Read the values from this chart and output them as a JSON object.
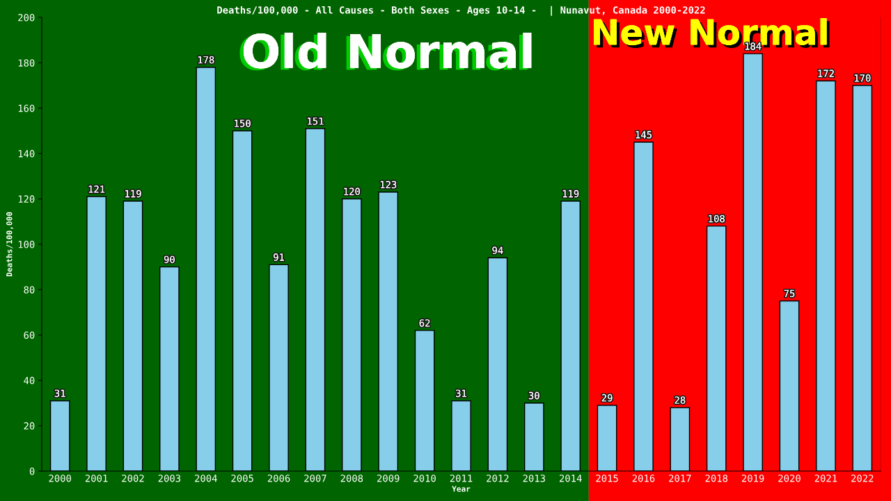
{
  "chart_data": {
    "type": "bar",
    "title": "Deaths/100,000 - All Causes - Both Sexes - Ages 10-14 -  | Nunavut, Canada 2000-2022",
    "xlabel": "Year",
    "ylabel": "Deaths/100,000",
    "categories": [
      "2000",
      "2001",
      "2002",
      "2003",
      "2004",
      "2005",
      "2006",
      "2007",
      "2008",
      "2009",
      "2010",
      "2011",
      "2012",
      "2013",
      "2014",
      "2015",
      "2016",
      "2017",
      "2018",
      "2019",
      "2020",
      "2021",
      "2022"
    ],
    "values": [
      31,
      121,
      119,
      90,
      178,
      150,
      91,
      151,
      120,
      123,
      62,
      31,
      94,
      30,
      119,
      29,
      145,
      28,
      108,
      184,
      75,
      172,
      170
    ],
    "color": "#87ceeb",
    "ylim": [
      0,
      200
    ],
    "yticks": [
      0,
      20,
      40,
      60,
      80,
      100,
      120,
      140,
      160,
      180,
      200
    ],
    "data_labels": true,
    "grid": false,
    "legend": false,
    "bands": [
      {
        "axis": "x",
        "from": "2000",
        "to": "2014",
        "label": "Old Normal",
        "color": "#006400"
      },
      {
        "axis": "x",
        "from": "2015",
        "to": "2022",
        "label": "New Normal",
        "color": "#ff0000"
      }
    ]
  }
}
